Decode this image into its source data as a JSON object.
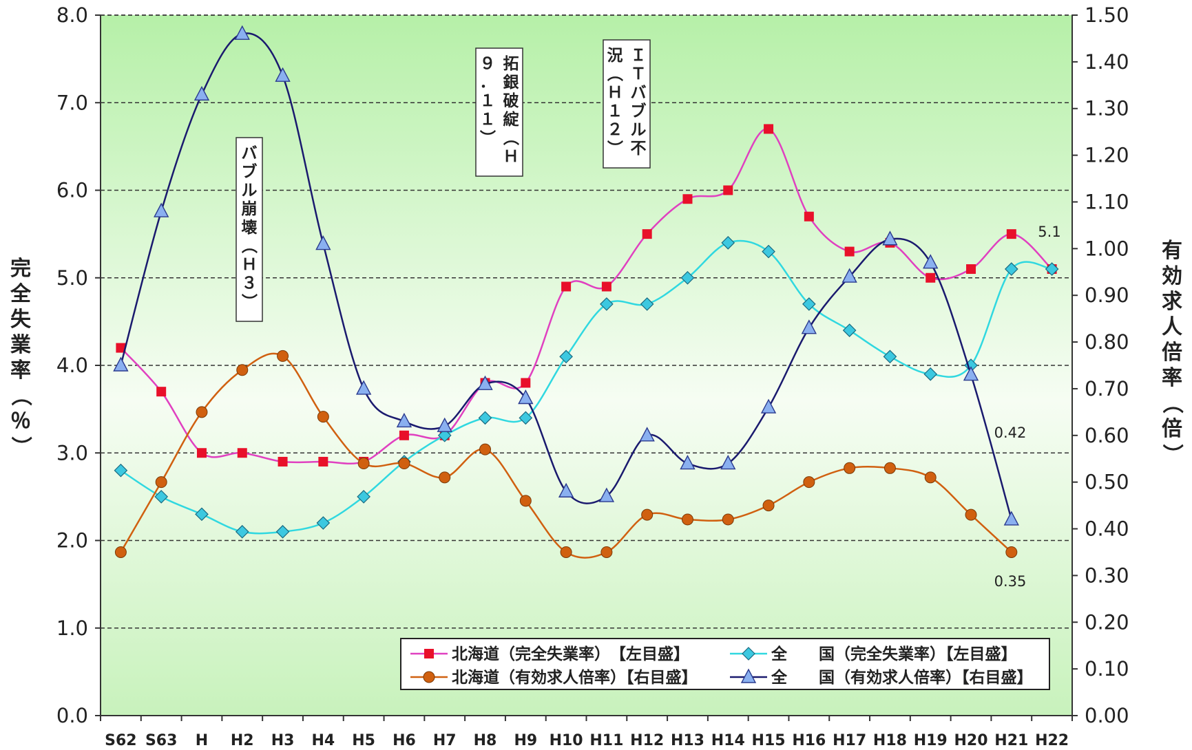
{
  "chart_data": {
    "type": "line",
    "categories": [
      "S62",
      "S63",
      "H",
      "H2",
      "H3",
      "H4",
      "H5",
      "H6",
      "H7",
      "H8",
      "H9",
      "H10",
      "H11",
      "H12",
      "H13",
      "H14",
      "H15",
      "H16",
      "H17",
      "H18",
      "H19",
      "H20",
      "H21",
      "H22"
    ],
    "left_axis": {
      "title": "完全失業率（％）",
      "range": [
        0,
        8
      ],
      "ticks": [
        "0.0",
        "1.0",
        "2.0",
        "3.0",
        "4.0",
        "5.0",
        "6.0",
        "7.0",
        "8.0"
      ]
    },
    "right_axis": {
      "title": "有効求人倍率（倍）",
      "range": [
        0,
        1.5
      ],
      "ticks": [
        "0.00",
        "0.10",
        "0.20",
        "0.30",
        "0.40",
        "0.50",
        "0.60",
        "0.70",
        "0.80",
        "0.90",
        "1.00",
        "1.10",
        "1.20",
        "1.30",
        "1.40",
        "1.50"
      ]
    },
    "series": [
      {
        "name": "北海道（完全失業率）　【左目盛】",
        "axis": "left",
        "color": "#e040c0",
        "marker": "square",
        "markerColor": "#e8102a",
        "values": [
          4.2,
          3.7,
          3.0,
          3.0,
          2.9,
          2.9,
          2.9,
          3.2,
          3.2,
          3.8,
          3.8,
          4.9,
          4.9,
          5.5,
          5.9,
          6.0,
          6.7,
          5.7,
          5.3,
          5.4,
          5.0,
          5.1,
          5.5,
          5.1
        ]
      },
      {
        "name": "全　　国（完全失業率）【左目盛】",
        "axis": "left",
        "color": "#30d8e0",
        "marker": "diamond",
        "markerColor": "#3cc8e0",
        "values": [
          2.8,
          2.5,
          2.3,
          2.1,
          2.1,
          2.2,
          2.5,
          2.9,
          3.2,
          3.4,
          3.4,
          4.1,
          4.7,
          4.7,
          5.0,
          5.4,
          5.3,
          4.7,
          4.4,
          4.1,
          3.9,
          4.0,
          5.1,
          5.1
        ]
      },
      {
        "name": "北海道（有効求人倍率）【右目盛】",
        "axis": "right",
        "color": "#d06010",
        "marker": "circle",
        "markerColor": "#d06010",
        "values": [
          0.35,
          0.5,
          0.65,
          0.74,
          0.77,
          0.64,
          0.54,
          0.54,
          0.51,
          0.57,
          0.46,
          0.35,
          0.35,
          0.43,
          0.42,
          0.42,
          0.45,
          0.5,
          0.53,
          0.53,
          0.51,
          0.43,
          0.35,
          null
        ]
      },
      {
        "name": "全　　国（有効求人倍率）【右目盛】",
        "axis": "right",
        "color": "#1a1a6e",
        "marker": "triangle",
        "markerColor": "#8ab0f0",
        "values": [
          0.75,
          1.08,
          1.33,
          1.46,
          1.37,
          1.01,
          0.7,
          0.63,
          0.62,
          0.71,
          0.68,
          0.48,
          0.47,
          0.6,
          0.54,
          0.54,
          0.66,
          0.83,
          0.94,
          1.02,
          0.97,
          0.73,
          0.42,
          null
        ]
      }
    ],
    "annotations": [
      {
        "text": "バブル崩壊（Ｈ３）",
        "at": 3
      },
      {
        "text": "拓銀破綻（Ｈ９．１１）",
        "at": 9
      },
      {
        "text": "ＩＴバブル不況（Ｈ１２）",
        "at": 12
      }
    ],
    "data_labels": [
      "5.1",
      "0.42",
      "0.35"
    ],
    "grid": true,
    "legend_position": "bottom-right",
    "plot_background": "light green gradient"
  }
}
